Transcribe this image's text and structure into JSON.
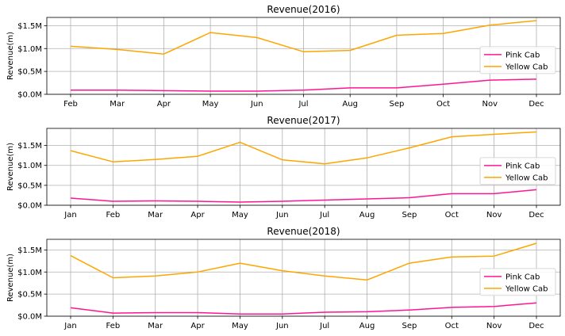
{
  "chart_data": [
    {
      "type": "line",
      "title": "Revenue(2016)",
      "xlabel": "",
      "ylabel": "Revenue(m)",
      "categories": [
        "Feb",
        "Mar",
        "Apr",
        "May",
        "Jun",
        "Jul",
        "Aug",
        "Sep",
        "Oct",
        "Nov",
        "Dec"
      ],
      "yticks": [
        "$0.0M",
        "$0.5M",
        "$1.0M",
        "$1.5M"
      ],
      "ylim": [
        0,
        1.68
      ],
      "grid": true,
      "legend_position": "right",
      "series": [
        {
          "name": "Pink Cab",
          "color": "#ff1493",
          "values": [
            0.09,
            0.09,
            0.08,
            0.07,
            0.07,
            0.09,
            0.14,
            0.14,
            0.22,
            0.31,
            0.33
          ]
        },
        {
          "name": "Yellow Cab",
          "color": "#ffa500",
          "values": [
            1.05,
            0.98,
            0.88,
            1.35,
            1.24,
            0.93,
            0.96,
            1.29,
            1.33,
            1.51,
            1.61
          ]
        }
      ]
    },
    {
      "type": "line",
      "title": "Revenue(2017)",
      "xlabel": "",
      "ylabel": "Revenue(m)",
      "categories": [
        "Jan",
        "Feb",
        "Mar",
        "Apr",
        "May",
        "Jun",
        "Jul",
        "Aug",
        "Sep",
        "Oct",
        "Nov",
        "Dec"
      ],
      "yticks": [
        "$0.0M",
        "$0.5M",
        "$1.0M",
        "$1.5M"
      ],
      "ylim": [
        0,
        1.93
      ],
      "grid": true,
      "legend_position": "right",
      "series": [
        {
          "name": "Pink Cab",
          "color": "#ff1493",
          "values": [
            0.18,
            0.1,
            0.11,
            0.1,
            0.08,
            0.1,
            0.13,
            0.16,
            0.19,
            0.29,
            0.29,
            0.39
          ]
        },
        {
          "name": "Yellow Cab",
          "color": "#ffa500",
          "values": [
            1.37,
            1.09,
            1.15,
            1.23,
            1.58,
            1.14,
            1.04,
            1.19,
            1.44,
            1.72,
            1.78,
            1.84
          ]
        }
      ]
    },
    {
      "type": "line",
      "title": "Revenue(2018)",
      "xlabel": "",
      "ylabel": "Revenue(m)",
      "categories": [
        "Jan",
        "Feb",
        "Mar",
        "Apr",
        "May",
        "Jun",
        "Jul",
        "Aug",
        "Sep",
        "Oct",
        "Nov",
        "Dec"
      ],
      "yticks": [
        "$0.0M",
        "$0.5M",
        "$1.0M",
        "$1.5M"
      ],
      "ylim": [
        0,
        1.74
      ],
      "grid": true,
      "legend_position": "right",
      "series": [
        {
          "name": "Pink Cab",
          "color": "#ff1493",
          "values": [
            0.19,
            0.07,
            0.08,
            0.08,
            0.05,
            0.05,
            0.09,
            0.1,
            0.14,
            0.2,
            0.22,
            0.3
          ]
        },
        {
          "name": "Yellow Cab",
          "color": "#ffa500",
          "values": [
            1.37,
            0.87,
            0.91,
            1.0,
            1.2,
            1.03,
            0.91,
            0.82,
            1.2,
            1.34,
            1.36,
            1.65
          ]
        }
      ]
    }
  ]
}
